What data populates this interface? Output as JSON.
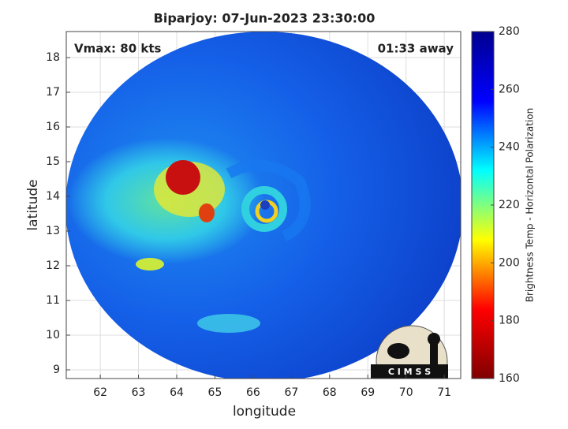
{
  "chart_data": {
    "type": "swath",
    "title": "Biparjoy: 07-Jun-2023 23:30:00",
    "annotations": [
      "Vmax: 80 kts",
      "01:33 away"
    ],
    "xlabel": "longitude",
    "ylabel": "latitude",
    "xlim": [
      61.11,
      71.43
    ],
    "xticks": [
      62,
      63,
      64,
      65,
      66,
      67,
      68,
      69,
      70,
      71
    ],
    "ylim": [
      8.75,
      18.75
    ],
    "yticks": [
      9,
      10,
      11,
      12,
      13,
      14,
      15,
      16,
      17,
      18
    ],
    "grid": true,
    "colorbar": {
      "label": "Brightness Temp - Horizontal Polarization",
      "lim": [
        160,
        280
      ],
      "ticks": [
        160,
        180,
        200,
        220,
        240,
        260,
        280
      ],
      "colormap": [
        "#800000",
        "#ff0000",
        "#ffff00",
        "#00ffff",
        "#0000ff",
        "#00008f"
      ]
    },
    "logo": "C I M S S"
  }
}
